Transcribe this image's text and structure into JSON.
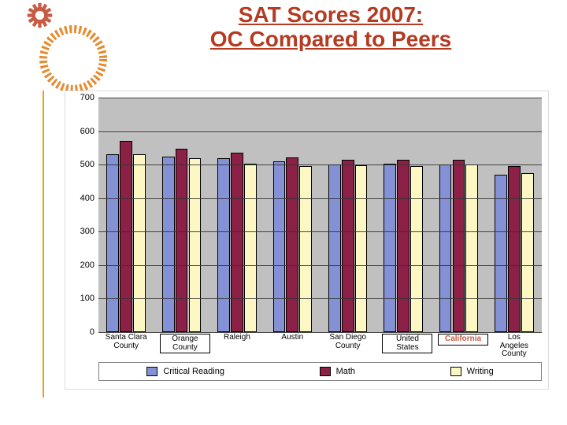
{
  "title": {
    "line1": "SAT Scores 2007:",
    "line2": "OC Compared to Peers",
    "color": "#b53a22",
    "fontsize": 28
  },
  "decor": {
    "gear_color": "#c75b44",
    "ring_color": "#e68a2e",
    "vert_line_color": "#f39c12"
  },
  "chart": {
    "type": "bar",
    "plot_background": "#c0c0c0",
    "grid_color": "#333333",
    "ylim": [
      0,
      700
    ],
    "ytick_step": 100,
    "yticks": [
      0,
      100,
      200,
      300,
      400,
      500,
      600,
      700
    ],
    "categories": [
      "Santa Clara\nCounty",
      "",
      "Raleigh",
      "Austin",
      "San Diego\nCounty",
      "",
      "",
      "Los\nAngeles\nCounty"
    ],
    "callouts": [
      {
        "index": 1,
        "text": "Orange\nCounty",
        "color": "#000000",
        "highlight": false
      },
      {
        "index": 5,
        "text": "United\nStates",
        "color": "#000000",
        "highlight": false
      },
      {
        "index": 6,
        "text": "California",
        "color": "#c75b44",
        "highlight": true
      }
    ],
    "series": [
      {
        "name": "Critical Reading",
        "color": "#8591d5",
        "values": [
          530,
          525,
          520,
          510,
          500,
          502,
          500,
          470
        ]
      },
      {
        "name": "Math",
        "color": "#8b2146",
        "values": [
          570,
          548,
          535,
          522,
          515,
          515,
          515,
          495
        ]
      },
      {
        "name": "Writing",
        "color": "#fdf7c3",
        "values": [
          530,
          518,
          502,
          495,
          497,
          495,
          500,
          475
        ]
      }
    ],
    "bar_group_width_pct": 10,
    "label_fontsize": 11
  },
  "legend": {
    "items": [
      {
        "label": "Critical Reading",
        "color": "#8591d5"
      },
      {
        "label": "Math",
        "color": "#8b2146"
      },
      {
        "label": "Writing",
        "color": "#fdf7c3"
      }
    ]
  }
}
